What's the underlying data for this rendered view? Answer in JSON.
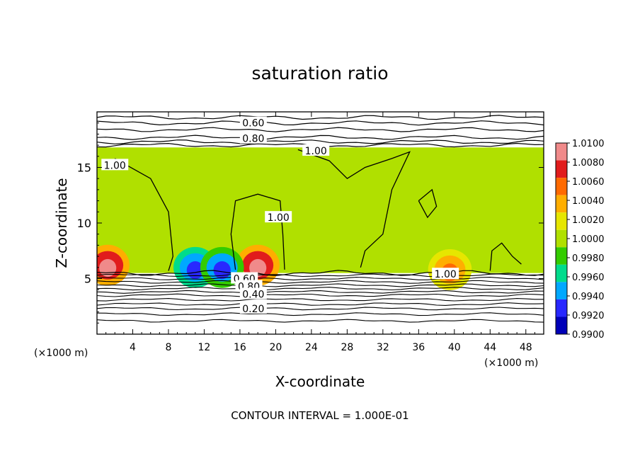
{
  "chart_data": {
    "type": "heatmap",
    "title": "saturation ratio",
    "xlabel": "X-coordinate",
    "ylabel": "Z-coordinate",
    "x_unit": "(×1000 m)",
    "z_unit": "(×1000 m)",
    "footer": "CONTOUR INTERVAL = 1.000E-01",
    "xlim": [
      0,
      50
    ],
    "ylim": [
      0,
      20
    ],
    "x_ticks": [
      "4",
      "8",
      "12",
      "16",
      "20",
      "24",
      "28",
      "32",
      "36",
      "40",
      "44",
      "48"
    ],
    "y_ticks": [
      "5",
      "10",
      "15"
    ],
    "colorbar": {
      "min": 0.99,
      "max": 1.01,
      "labels": [
        "1.0100",
        "1.0080",
        "1.0060",
        "1.0040",
        "1.0020",
        "1.0000",
        "0.9980",
        "0.9960",
        "0.9940",
        "0.9920",
        "0.9900"
      ],
      "colors": [
        "#f08a8a",
        "#e11c1c",
        "#ff6a00",
        "#ffae00",
        "#e6e600",
        "#b0e000",
        "#33cc00",
        "#00dc8c",
        "#00a8ff",
        "#2828ff",
        "#0000b8",
        "#5a0090"
      ]
    },
    "field": {
      "background_value": 1.0002,
      "moist_layer_z": [
        5.5,
        16.8
      ],
      "dry_patches": [
        {
          "x": 1.2,
          "z": 6.2,
          "value": 1.01
        },
        {
          "x": 18.0,
          "z": 6.2,
          "value": 1.01
        },
        {
          "x": 39.5,
          "z": 5.8,
          "value": 1.005
        },
        {
          "x": 11.0,
          "z": 6.0,
          "value": 0.992
        },
        {
          "x": 14.0,
          "z": 6.0,
          "value": 0.993
        }
      ]
    },
    "contour_labels": [
      {
        "text": "0.60",
        "x": 17.5,
        "z": 19.0
      },
      {
        "text": "0.80",
        "x": 17.5,
        "z": 17.6
      },
      {
        "text": "1.00",
        "x": 24.5,
        "z": 16.5
      },
      {
        "text": "1.00",
        "x": 2.0,
        "z": 15.2
      },
      {
        "text": "1.00",
        "x": 20.3,
        "z": 10.5
      },
      {
        "text": "1.00",
        "x": 39.0,
        "z": 5.4
      },
      {
        "text": "0.60",
        "x": 16.5,
        "z": 5.0
      },
      {
        "text": "0.80",
        "x": 17.0,
        "z": 4.3
      },
      {
        "text": "0.40",
        "x": 17.5,
        "z": 3.6
      },
      {
        "text": "0.20",
        "x": 17.5,
        "z": 2.3
      }
    ]
  }
}
